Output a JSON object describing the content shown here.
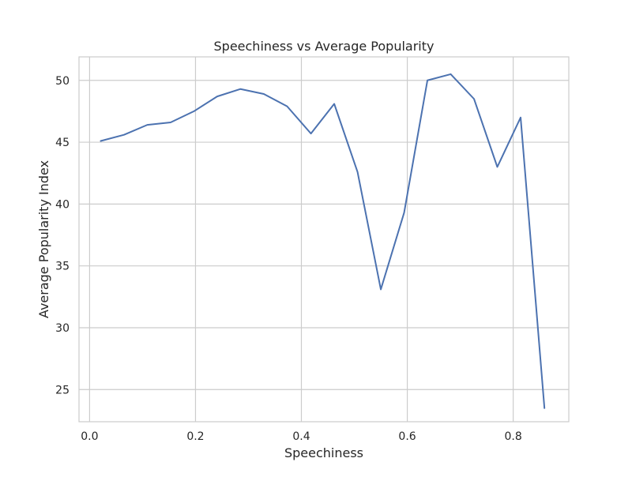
{
  "chart_data": {
    "type": "line",
    "title": "Speechiness vs Average Popularity",
    "xlabel": "Speechiness",
    "ylabel": "Average Popularity Index",
    "xlim": [
      -0.02,
      0.905
    ],
    "ylim": [
      22.4,
      51.9
    ],
    "xticks": [
      0.0,
      0.2,
      0.4,
      0.6,
      0.8
    ],
    "xtick_labels": [
      "0.0",
      "0.2",
      "0.4",
      "0.6",
      "0.8"
    ],
    "yticks": [
      25,
      30,
      35,
      40,
      45,
      50
    ],
    "ytick_labels": [
      "25",
      "30",
      "35",
      "40",
      "45",
      "50"
    ],
    "grid": true,
    "series": [
      {
        "color": "#4c72b0",
        "x": [
          0.021,
          0.065,
          0.109,
          0.153,
          0.197,
          0.241,
          0.285,
          0.329,
          0.373,
          0.418,
          0.462,
          0.506,
          0.55,
          0.594,
          0.638,
          0.682,
          0.726,
          0.77,
          0.814,
          0.859
        ],
        "values": [
          45.1,
          45.6,
          46.4,
          46.6,
          47.5,
          48.7,
          49.3,
          48.9,
          47.9,
          45.7,
          48.1,
          42.6,
          33.1,
          39.3,
          50.0,
          50.5,
          48.5,
          43.0,
          47.0,
          23.5
        ]
      }
    ]
  }
}
